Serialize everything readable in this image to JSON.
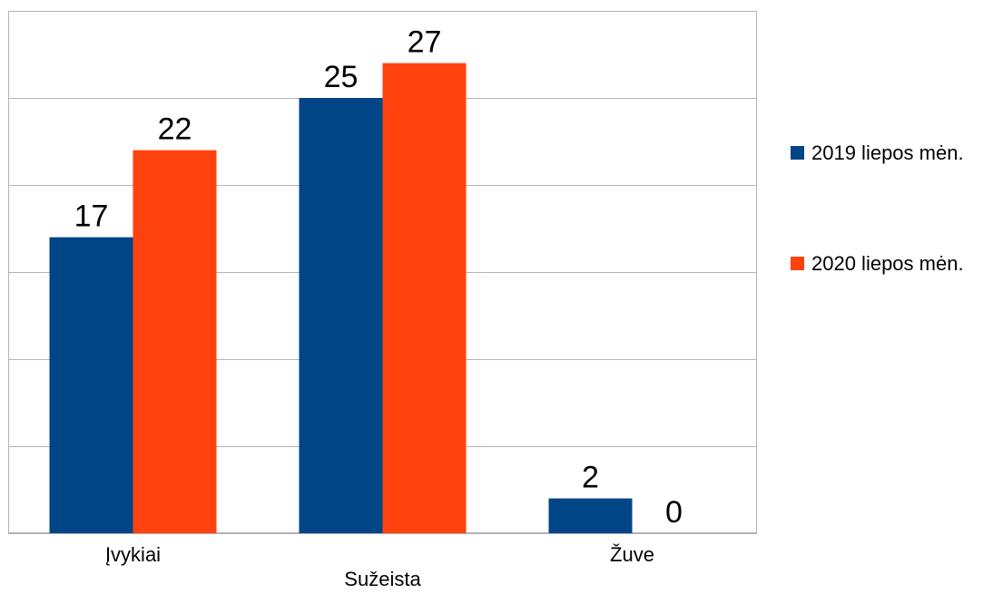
{
  "chart_data": {
    "type": "bar",
    "categories": [
      "Įvykiai",
      "Sužeista",
      "Žuve"
    ],
    "series": [
      {
        "name": "2019 liepos mėn.",
        "values": [
          17,
          25,
          2
        ],
        "color": "#004586"
      },
      {
        "name": "2020 liepos mėn.",
        "values": [
          22,
          27,
          0
        ],
        "color": "#ff420e"
      }
    ],
    "ylim": [
      0,
      30
    ],
    "y_grid_step": 5,
    "grid": true,
    "show_y_tick_labels": false,
    "legend_position": "right"
  }
}
